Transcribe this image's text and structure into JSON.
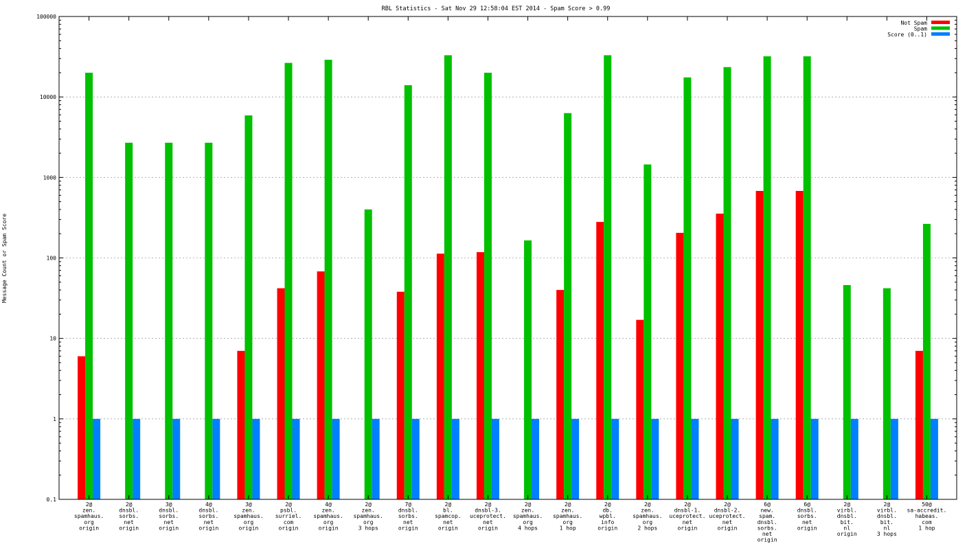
{
  "chart_data": {
    "type": "bar",
    "title": "RBL Statistics - Sat Nov 29 12:58:04 EST 2014 - Spam Score > 0.99",
    "xlabel": "",
    "ylabel": "Message Count or Spam Score",
    "yscale": "log",
    "ylim": [
      0.1,
      100000
    ],
    "yticks": [
      "0.1",
      "1",
      "10",
      "100",
      "1000",
      "10000",
      "100000"
    ],
    "grid": true,
    "legend_position": "top-right",
    "categories": [
      [
        "2@",
        "zen.",
        "spamhaus.",
        "org",
        "origin"
      ],
      [
        "2@",
        "dnsbl.",
        "sorbs.",
        "net",
        "origin"
      ],
      [
        "3@",
        "dnsbl.",
        "sorbs.",
        "net",
        "origin"
      ],
      [
        "4@",
        "dnsbl.",
        "sorbs.",
        "net",
        "origin"
      ],
      [
        "3@",
        "zen.",
        "spamhaus.",
        "org",
        "origin"
      ],
      [
        "2@",
        "psbl.",
        "surriel.",
        "com",
        "origin"
      ],
      [
        "4@",
        "zen.",
        "spamhaus.",
        "org",
        "origin"
      ],
      [
        "2@",
        "zen.",
        "spamhaus.",
        "org",
        "3 hops"
      ],
      [
        "7@",
        "dnsbl.",
        "sorbs.",
        "net",
        "origin"
      ],
      [
        "2@",
        "bl.",
        "spamcop.",
        "net",
        "origin"
      ],
      [
        "2@",
        "dnsbl-3.",
        "uceprotect.",
        "net",
        "origin"
      ],
      [
        "2@",
        "zen.",
        "spamhaus.",
        "org",
        "4 hops"
      ],
      [
        "2@",
        "zen.",
        "spamhaus.",
        "org",
        "1 hop"
      ],
      [
        "2@",
        "db.",
        "wpbl.",
        "info",
        "origin"
      ],
      [
        "2@",
        "zen.",
        "spamhaus.",
        "org",
        "2 hops"
      ],
      [
        "2@",
        "dnsbl-1.",
        "uceprotect.",
        "net",
        "origin"
      ],
      [
        "2@",
        "dnsbl-2.",
        "uceprotect.",
        "net",
        "origin"
      ],
      [
        "6@",
        "new.",
        "spam.",
        "dnsbl.",
        "sorbs.",
        "net",
        "origin"
      ],
      [
        "6@",
        "dnsbl.",
        "sorbs.",
        "net",
        "origin"
      ],
      [
        "2@",
        "virbl.",
        "dnsbl.",
        "bit.",
        "nl",
        "origin"
      ],
      [
        "2@",
        "virbl.",
        "dnsbl.",
        "bit.",
        "nl",
        "3 hops"
      ],
      [
        "50@",
        "sa-accredit.",
        "habeas.",
        "com",
        "1 hop"
      ]
    ],
    "series": [
      {
        "name": "Not Spam",
        "color": "#ff0000",
        "values": [
          6,
          null,
          null,
          null,
          7,
          42,
          68,
          null,
          38,
          113,
          118,
          null,
          40,
          280,
          17,
          205,
          355,
          680,
          680,
          null,
          null,
          7
        ]
      },
      {
        "name": "Spam",
        "color": "#00c000",
        "values": [
          20000,
          2700,
          2700,
          2700,
          5900,
          26500,
          29000,
          400,
          14000,
          33000,
          20000,
          165,
          6300,
          33000,
          1450,
          17500,
          23500,
          32000,
          32000,
          46,
          42,
          265
        ]
      },
      {
        "name": "Score (0..1)",
        "color": "#0080ff",
        "values": [
          1,
          1,
          1,
          1,
          1,
          1,
          1,
          1,
          1,
          1,
          1,
          1,
          1,
          1,
          1,
          1,
          1,
          1,
          1,
          1,
          1,
          1
        ]
      }
    ]
  }
}
